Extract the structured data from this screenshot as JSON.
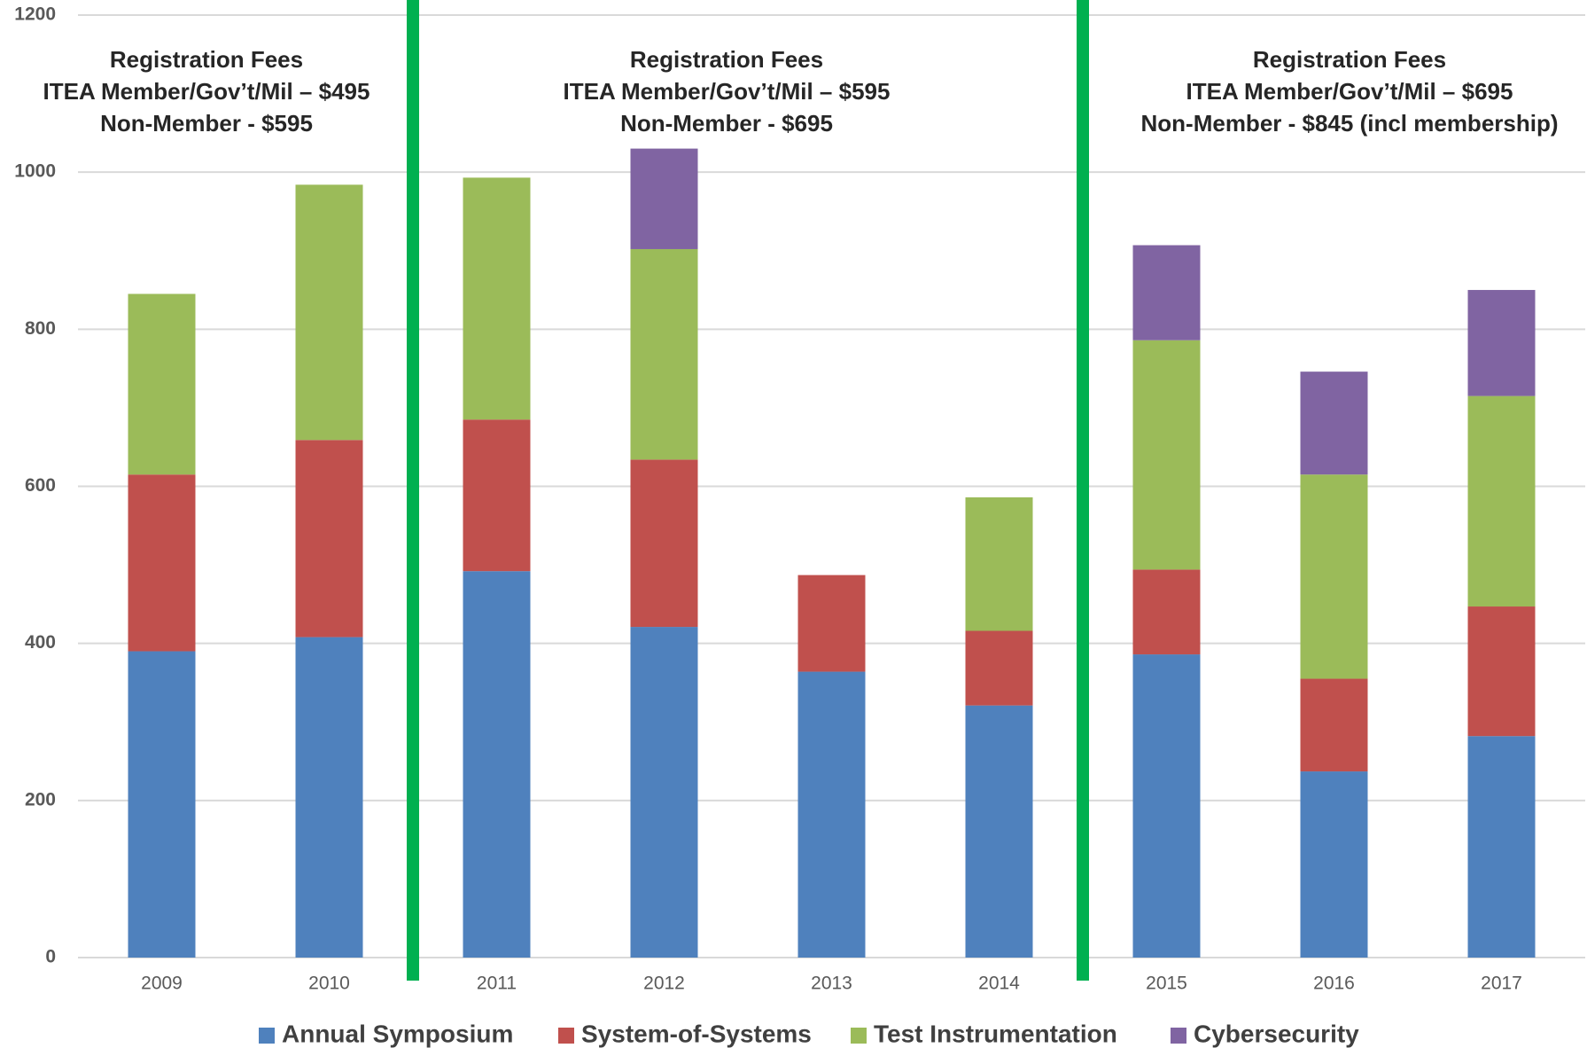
{
  "chart_data": {
    "type": "stacked_bar",
    "categories": [
      "2009",
      "2010",
      "2011",
      "2012",
      "2013",
      "2014",
      "2015",
      "2016",
      "2017"
    ],
    "series": [
      {
        "name": "Annual Symposium",
        "color": "#4f81bd",
        "values": [
          390,
          408,
          492,
          421,
          364,
          321,
          386,
          237,
          282
        ]
      },
      {
        "name": "System-of-Systems",
        "color": "#c0504d",
        "values": [
          225,
          251,
          193,
          213,
          123,
          95,
          108,
          118,
          165
        ]
      },
      {
        "name": "Test Instrumentation",
        "color": "#9bbb59",
        "values": [
          230,
          325,
          308,
          268,
          null,
          170,
          292,
          260,
          268
        ]
      },
      {
        "name": "Cybersecurity",
        "color": "#8064a2",
        "values": [
          null,
          null,
          null,
          128,
          null,
          null,
          121,
          131,
          135
        ]
      }
    ],
    "ylim": [
      0,
      1200
    ],
    "yticks": [
      0,
      200,
      400,
      600,
      800,
      1000,
      1200
    ],
    "grid": true,
    "annotations": [
      [
        "Registration Fees",
        "ITEA Member/Gov’t/Mil – $495",
        "Non-Member - $595"
      ],
      [
        "Registration Fees",
        "ITEA Member/Gov’t/Mil – $595",
        "Non-Member - $695"
      ],
      [
        "Registration Fees",
        "ITEA Member/Gov’t/Mil – $695",
        "Non-Member - $845 (incl membership)"
      ]
    ]
  }
}
